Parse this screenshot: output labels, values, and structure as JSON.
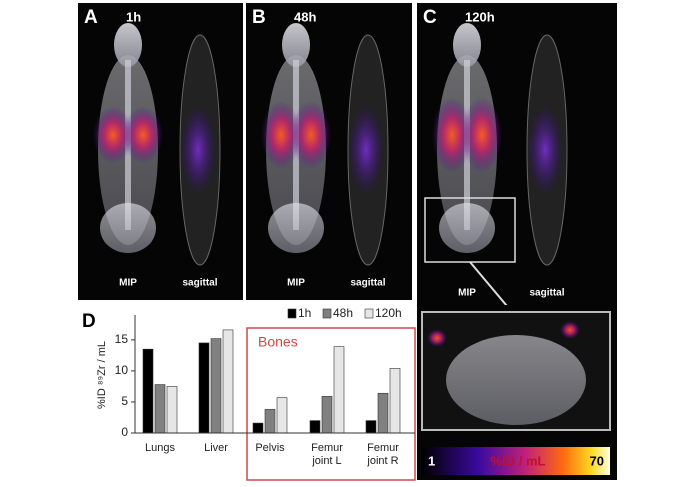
{
  "panels": [
    {
      "letter": "A",
      "time": "1h",
      "views": [
        "MIP",
        "sagittal"
      ]
    },
    {
      "letter": "B",
      "time": "48h",
      "views": [
        "MIP",
        "sagittal"
      ]
    },
    {
      "letter": "C",
      "time": "120h",
      "views": [
        "MIP",
        "sagittal"
      ]
    }
  ],
  "colorbar": {
    "min": "1",
    "label": "%ID / mL",
    "max": "70"
  },
  "chart_data": {
    "type": "bar",
    "panel_letter": "D",
    "ylabel": "%ID ⁸⁹Zr / mL",
    "categories": [
      "Lungs",
      "Liver",
      "Pelvis",
      "Femur joint L",
      "Femur joint R"
    ],
    "series": [
      {
        "name": "1h",
        "color": "#000000",
        "values": [
          13.5,
          14.5,
          1.6,
          2.0,
          2.0
        ]
      },
      {
        "name": "48h",
        "color": "#808080",
        "values": [
          7.8,
          15.2,
          3.8,
          5.9,
          6.4
        ]
      },
      {
        "name": "120h",
        "color": "#e6e6e6",
        "values": [
          7.5,
          16.6,
          5.7,
          13.9,
          10.4
        ]
      }
    ],
    "ylim": [
      0,
      19
    ],
    "yticks": [
      0,
      5,
      10,
      15
    ],
    "annotation": "Bones"
  }
}
